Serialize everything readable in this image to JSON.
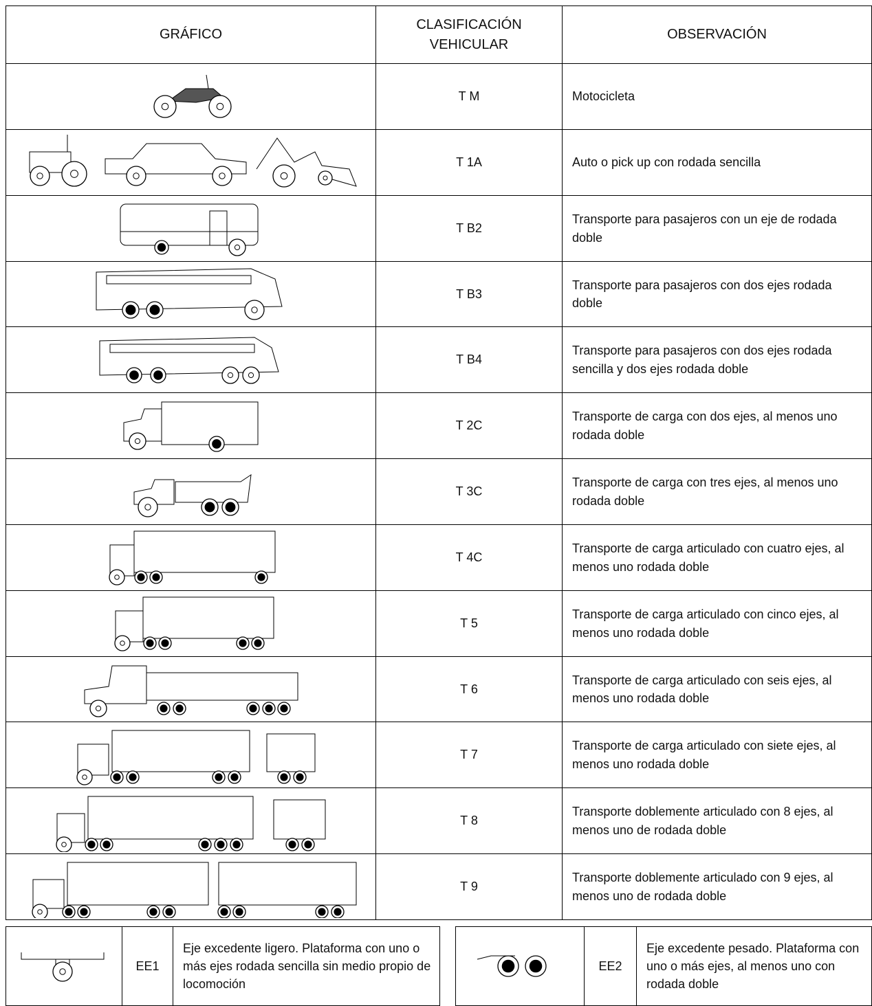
{
  "header": {
    "columns": [
      "GRÁFICO",
      "CLASIFICACIÓN VEHICULAR",
      "OBSERVACIÓN"
    ]
  },
  "table": {
    "rows": [
      [
        "T M",
        "Motocicleta"
      ],
      [
        "T 1A",
        "Auto o pick up con rodada sencilla"
      ],
      [
        "T B2",
        "Transporte para pasajeros con un eje de rodada doble"
      ],
      [
        "T B3",
        "Transporte para pasajeros con dos ejes rodada doble"
      ],
      [
        "T B4",
        "Transporte para pasajeros con dos ejes rodada sencilla y dos ejes rodada doble"
      ],
      [
        "T 2C",
        "Transporte de carga con dos ejes, al menos uno rodada doble"
      ],
      [
        "T 3C",
        "Transporte de carga con tres ejes, al menos uno rodada doble"
      ],
      [
        "T 4C",
        "Transporte de carga articulado con cuatro ejes, al menos uno rodada doble"
      ],
      [
        "T 5",
        "Transporte de carga articulado con cinco ejes, al menos uno rodada doble"
      ],
      [
        "T 6",
        "Transporte de carga articulado con seis ejes, al menos uno rodada doble"
      ],
      [
        "T 7",
        "Transporte de carga articulado con siete ejes, al menos uno rodada doble"
      ],
      [
        "T 8",
        "Transporte doblemente articulado con 8 ejes, al menos uno de rodada doble"
      ],
      [
        "T 9",
        "Transporte doblemente articulado con 9 ejes, al menos uno de rodada doble"
      ]
    ]
  },
  "extras": [
    {
      "code": "EE1",
      "description": "Eje excedente ligero. Plataforma con uno o más ejes rodada sencilla sin medio propio de locomoción"
    },
    {
      "code": "EE2",
      "description": "Eje excedente pesado. Plataforma con uno o más ejes, al menos uno con rodada doble"
    }
  ]
}
